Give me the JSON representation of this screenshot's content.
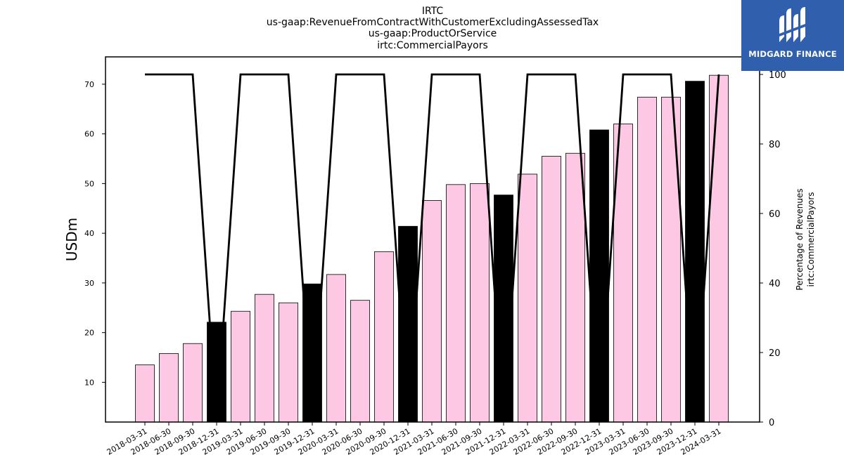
{
  "chart_data": {
    "type": "bar",
    "title_lines": [
      "IRTC",
      "us-gaap:RevenueFromContractWithCustomerExcludingAssessedTax",
      "us-gaap:ProductOrService",
      "irtc:CommercialPayors"
    ],
    "ylabel": "USDm",
    "ylabel_right": [
      "Percentage of Revenues",
      "irtc:CommercialPayors"
    ],
    "categories": [
      "2018-03-31",
      "2018-06-30",
      "2018-09-30",
      "2018-12-31",
      "2019-03-31",
      "2019-06-30",
      "2019-09-30",
      "2019-12-31",
      "2020-03-31",
      "2020-06-30",
      "2020-09-30",
      "2020-12-31",
      "2021-03-31",
      "2021-06-30",
      "2021-09-30",
      "2021-12-31",
      "2022-03-31",
      "2022-06-30",
      "2022-09-30",
      "2022-12-31",
      "2023-03-31",
      "2023-06-30",
      "2023-09-30",
      "2023-12-31",
      "2024-03-31"
    ],
    "series": [
      {
        "values": [
          13.5,
          15.8,
          17.8,
          22.1,
          24.3,
          27.7,
          26.0,
          29.8,
          31.7,
          26.5,
          36.3,
          41.4,
          46.6,
          49.8,
          50.0,
          47.7,
          51.9,
          55.5,
          56.1,
          60.8,
          62.0,
          67.4,
          67.4,
          70.6,
          71.8
        ]
      },
      {
        "axis": "right",
        "type": "line",
        "values": [
          100,
          100,
          100,
          0,
          100,
          100,
          100,
          0,
          100,
          100,
          100,
          0,
          100,
          100,
          100,
          0,
          100,
          100,
          100,
          0,
          100,
          100,
          100,
          0,
          100
        ]
      }
    ],
    "highlight_indices": [
      3,
      7,
      11,
      15,
      19,
      23
    ],
    "ylim": [
      2,
      75.5
    ],
    "yticks": [
      10,
      20,
      30,
      40,
      50,
      60,
      70
    ],
    "ylim_right": [
      0,
      100
    ],
    "yticks_right": [
      0,
      20,
      40,
      60,
      80,
      100
    ],
    "colors": {
      "bar": "#fcc8e3",
      "bar_highlight": "#000000",
      "bar_edge": "#000000",
      "line": "#000000"
    },
    "grid": false,
    "legend": "none"
  },
  "logo": {
    "text": "MIDGARD FINANCE",
    "icon": "midgard-logo-mark",
    "background": "#2f5fad"
  }
}
